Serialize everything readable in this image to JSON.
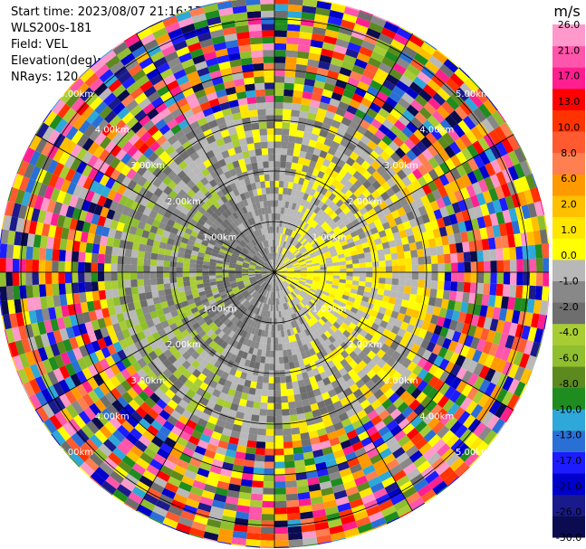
{
  "header": {
    "start_time": "Start time: 2023/08/07 21:16:17",
    "instrument": "WLS200s-181",
    "field": "Field: VEL",
    "elevation": "Elevation(deg): 35.30",
    "nrays": "NRays: 120"
  },
  "chart_data": {
    "type": "heatmap",
    "projection": "polar-ppi",
    "nrays": 120,
    "range_unit": "km",
    "range_rings": [
      {
        "range": 1.0,
        "label": "1.00km"
      },
      {
        "range": 2.0,
        "label": "2.00km"
      },
      {
        "range": 3.0,
        "label": "3.00km"
      },
      {
        "range": 4.0,
        "label": "4.00km"
      },
      {
        "range": 5.0,
        "label": "5.00km"
      }
    ],
    "data_extent_km": 6.2,
    "valid_range_km": 3.3,
    "noise_beyond_range_km": 3.3,
    "velocity_regions": [
      {
        "sector": "east",
        "azimuth_center_deg": 90,
        "velocity_ms": 4.0
      },
      {
        "sector": "north",
        "azimuth_center_deg": 10,
        "velocity_ms": 1.5
      },
      {
        "sector": "south",
        "azimuth_center_deg": 175,
        "velocity_ms": 1.5
      },
      {
        "sector": "west",
        "azimuth_center_deg": 270,
        "velocity_ms": -6.0
      },
      {
        "sector": "southwest",
        "azimuth_center_deg": 225,
        "velocity_ms": -3.0
      },
      {
        "sector": "northwest",
        "azimuth_center_deg": 305,
        "velocity_ms": -2.5
      }
    ],
    "colorbar": {
      "unit_label": "m/s",
      "colors": [
        "#0b0b4f",
        "#1a1a8c",
        "#0000cc",
        "#1c1cff",
        "#2a6fd6",
        "#2ea8d8",
        "#1e8c1e",
        "#5c8a1e",
        "#8fbf2e",
        "#a8cc34",
        "#6e6e6e",
        "#888888",
        "#b8b8b8",
        "#ffff00",
        "#ffe600",
        "#ffc000",
        "#ff9900",
        "#ff7f50",
        "#ff5a30",
        "#ff3300",
        "#ff0000",
        "#ff1f8f",
        "#ff55aa",
        "#ff99cc"
      ],
      "tick_labels": [
        "-30.0",
        "-26.0",
        "-21.0",
        "-17.0",
        "-13.0",
        "-10.0",
        "-8.0",
        "-6.0",
        "-4.0",
        "-2.0",
        "-1.0",
        "0.0",
        "1.0",
        "2.0",
        "6.0",
        "8.0",
        "10.0",
        "13.0",
        "17.0",
        "21.0",
        "26.0"
      ]
    }
  }
}
